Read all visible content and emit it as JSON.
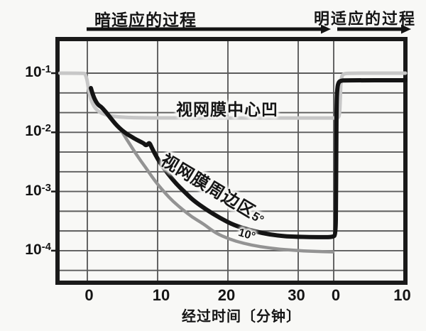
{
  "style": {
    "background": "#f8f8f6",
    "border_color": "#1a1a1a",
    "grid_color": "#5c5c5c",
    "text_color": "#151515",
    "arrow_color": "#141414"
  },
  "chart_data": {
    "type": "line",
    "x_axis": {
      "label": "经过时间〔分钟〕",
      "unit": "分钟",
      "segments": [
        {
          "name": "dark-adaptation",
          "ticks": [
            0,
            10,
            20,
            30
          ]
        },
        {
          "name": "light-adaptation",
          "ticks": [
            0,
            10
          ]
        }
      ],
      "note": "time axis restarts at 0 when light is switched on"
    },
    "y_axis": {
      "scale": "log",
      "tick_labels": [
        {
          "base": "10",
          "exp": "-1"
        },
        {
          "base": "10",
          "exp": "-2"
        },
        {
          "base": "10",
          "exp": "-3"
        },
        {
          "base": "10",
          "exp": "-4"
        }
      ],
      "tick_values": [
        0.1,
        0.01,
        0.001,
        0.0001
      ],
      "minor_grid": "each decade divided in thirds"
    },
    "phases": {
      "dark": "暗适应的过程",
      "light": "明适应的过程"
    },
    "series": [
      {
        "name": "视网膜中心凹",
        "color": "#c7c7c7",
        "width": 5,
        "dark_points": [
          [
            -3.9,
            0.1
          ],
          [
            -0.55,
            0.1
          ],
          [
            -0.3,
            0.098
          ],
          [
            0.0,
            0.075
          ],
          [
            0.15,
            0.055
          ],
          [
            0.35,
            0.042
          ],
          [
            0.6,
            0.0335
          ],
          [
            0.95,
            0.0273
          ],
          [
            1.4,
            0.0235
          ],
          [
            2.1,
            0.0207
          ],
          [
            3.0,
            0.0193
          ],
          [
            3.9,
            0.0185
          ],
          [
            5.2,
            0.0179
          ],
          [
            7.5,
            0.0176
          ],
          [
            12,
            0.0175
          ],
          [
            25,
            0.0175
          ],
          [
            34.9,
            0.0175
          ]
        ],
        "light_points": [
          [
            0.65,
            0.0175
          ],
          [
            0.8,
            0.0198
          ],
          [
            0.88,
            0.028
          ],
          [
            0.94,
            0.047
          ],
          [
            1.02,
            0.075
          ],
          [
            1.15,
            0.0905
          ],
          [
            1.4,
            0.0975
          ],
          [
            2.0,
            0.1
          ],
          [
            10.0,
            0.1
          ]
        ]
      },
      {
        "name": "视网膜周边区 10°",
        "label": "10°",
        "color": "#939393",
        "width": 4.5,
        "dark_points": [
          [
            4.75,
            0.0111
          ],
          [
            5.3,
            0.0087
          ],
          [
            6.0,
            0.0064
          ],
          [
            6.8,
            0.00455
          ],
          [
            7.6,
            0.0033
          ],
          [
            8.4,
            0.00245
          ],
          [
            9.2,
            0.00177
          ],
          [
            10.1,
            0.00128
          ],
          [
            11.1,
            0.00093
          ],
          [
            12.2,
            0.00068
          ],
          [
            13.5,
            0.0005
          ],
          [
            14.9,
            0.00037
          ],
          [
            16.5,
            0.000285
          ],
          [
            18.2,
            0.0002
          ],
          [
            20.1,
            0.000158
          ],
          [
            22.2,
            0.000133
          ],
          [
            24.5,
            0.000117
          ],
          [
            27.0,
            0.000107
          ],
          [
            29.5,
            0.000101
          ],
          [
            32.0,
            9.75e-05
          ],
          [
            34.95,
            9.55e-05
          ]
        ],
        "light_points": []
      },
      {
        "name": "视网膜周边区 5°",
        "label": "视网膜周边区",
        "label_deg": "5°",
        "color": "#141414",
        "width": 6,
        "dark_points": [
          [
            0.5,
            0.056
          ],
          [
            0.7,
            0.0465
          ],
          [
            0.95,
            0.0385
          ],
          [
            1.25,
            0.0325
          ],
          [
            1.6,
            0.0287
          ],
          [
            1.95,
            0.0271
          ],
          [
            2.35,
            0.024
          ],
          [
            2.8,
            0.0209
          ],
          [
            3.25,
            0.0178
          ],
          [
            3.75,
            0.015
          ],
          [
            4.3,
            0.0127
          ],
          [
            4.9,
            0.0109
          ],
          [
            5.6,
            0.0094
          ],
          [
            6.3,
            0.0084
          ],
          [
            7.0,
            0.0075
          ],
          [
            7.6,
            0.0069
          ],
          [
            8.0,
            0.00655
          ],
          [
            8.35,
            0.006
          ],
          [
            8.6,
            0.0063
          ],
          [
            8.85,
            0.0067
          ],
          [
            9.2,
            0.0054
          ],
          [
            9.65,
            0.00425
          ],
          [
            10.4,
            0.00298
          ],
          [
            11.5,
            0.00197
          ],
          [
            12.6,
            0.00137
          ],
          [
            13.85,
            0.00098
          ],
          [
            15.05,
            0.00071
          ],
          [
            16.9,
            0.000495
          ],
          [
            18.9,
            0.000355
          ],
          [
            20.9,
            0.000268
          ],
          [
            22.9,
            0.000227
          ],
          [
            24.95,
            0.000197
          ],
          [
            27.0,
            0.00018
          ],
          [
            29.2,
            0.000172
          ],
          [
            33.0,
            0.000169
          ],
          [
            34.98,
            0.000169
          ]
        ],
        "light_points": [
          [
            0.27,
            0.00019
          ],
          [
            0.32,
            0.0006
          ],
          [
            0.35,
            0.004
          ],
          [
            0.4,
            0.03
          ],
          [
            0.5,
            0.058
          ],
          [
            0.7,
            0.071
          ],
          [
            1.05,
            0.0748
          ],
          [
            1.6,
            0.0757
          ],
          [
            10.0,
            0.0758
          ]
        ]
      }
    ]
  }
}
